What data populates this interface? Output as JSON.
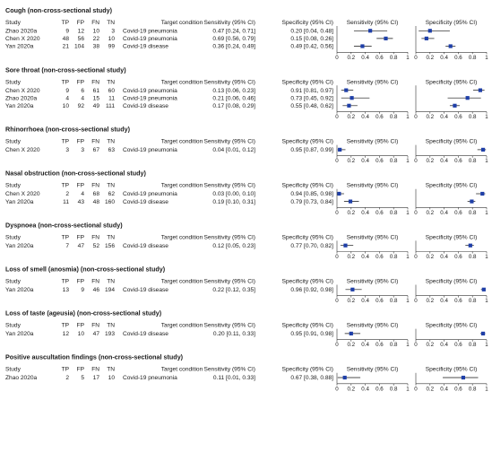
{
  "columns": {
    "study": "Study",
    "tp": "TP",
    "fp": "FP",
    "fn": "FN",
    "tn": "TN",
    "target": "Target condition",
    "sens": "Sensitivity (95% CI)",
    "spec": "Specificity (95% CI)"
  },
  "chart_data": {
    "type": "forest",
    "x_axis": {
      "xlim": [
        0,
        1
      ],
      "ticks": [
        "0",
        "0.2",
        "0.4",
        "0.6",
        "0.8",
        "1"
      ]
    },
    "marker_color": "#1f3fa8",
    "sections": [
      {
        "title": "Cough (non-cross-sectional study)",
        "rows": [
          {
            "study": "Zhao 2020a",
            "tp": 9,
            "fp": 12,
            "fn": 10,
            "tn": 3,
            "target": "Covid-19 pneumonia",
            "sens_text": "0.47 [0.24, 0.71]",
            "spec_text": "0.20 [0.04, 0.48]",
            "sens": 0.47,
            "sens_lo": 0.24,
            "sens_hi": 0.71,
            "spec": 0.2,
            "spec_lo": 0.04,
            "spec_hi": 0.48
          },
          {
            "study": "Chen X 2020",
            "tp": 48,
            "fp": 56,
            "fn": 22,
            "tn": 10,
            "target": "Covid-19 pneumonia",
            "sens_text": "0.69 [0.56, 0.79]",
            "spec_text": "0.15 [0.08, 0.26]",
            "sens": 0.69,
            "sens_lo": 0.56,
            "sens_hi": 0.79,
            "spec": 0.15,
            "spec_lo": 0.08,
            "spec_hi": 0.26
          },
          {
            "study": "Yan 2020a",
            "tp": 21,
            "fp": 104,
            "fn": 38,
            "tn": 99,
            "target": "Covid-19 disease",
            "sens_text": "0.36 [0.24, 0.49]",
            "spec_text": "0.49 [0.42, 0.56]",
            "sens": 0.36,
            "sens_lo": 0.24,
            "sens_hi": 0.49,
            "spec": 0.49,
            "spec_lo": 0.42,
            "spec_hi": 0.56
          }
        ]
      },
      {
        "title": "Sore throat (non-cross-sectional study)",
        "rows": [
          {
            "study": "Chen X 2020",
            "tp": 9,
            "fp": 6,
            "fn": 61,
            "tn": 60,
            "target": "Covid-19 pneumonia",
            "sens_text": "0.13 [0.06, 0.23]",
            "spec_text": "0.91 [0.81, 0.97]",
            "sens": 0.13,
            "sens_lo": 0.06,
            "sens_hi": 0.23,
            "spec": 0.91,
            "spec_lo": 0.81,
            "spec_hi": 0.97
          },
          {
            "study": "Zhao 2020a",
            "tp": 4,
            "fp": 4,
            "fn": 15,
            "tn": 11,
            "target": "Covid-19 pneumonia",
            "sens_text": "0.21 [0.06, 0.46]",
            "spec_text": "0.73 [0.45, 0.92]",
            "sens": 0.21,
            "sens_lo": 0.06,
            "sens_hi": 0.46,
            "spec": 0.73,
            "spec_lo": 0.45,
            "spec_hi": 0.92
          },
          {
            "study": "Yan 2020a",
            "tp": 10,
            "fp": 92,
            "fn": 49,
            "tn": 111,
            "target": "Covid-19 disease",
            "sens_text": "0.17 [0.08, 0.29]",
            "spec_text": "0.55 [0.48, 0.62]",
            "sens": 0.17,
            "sens_lo": 0.08,
            "sens_hi": 0.29,
            "spec": 0.55,
            "spec_lo": 0.48,
            "spec_hi": 0.62
          }
        ]
      },
      {
        "title": "Rhinorrhoea (non-cross-sectional study)",
        "rows": [
          {
            "study": "Chen X 2020",
            "tp": 3,
            "fp": 3,
            "fn": 67,
            "tn": 63,
            "target": "Covid-19 pneumonia",
            "sens_text": "0.04 [0.01, 0.12]",
            "spec_text": "0.95 [0.87, 0.99]",
            "sens": 0.04,
            "sens_lo": 0.01,
            "sens_hi": 0.12,
            "spec": 0.95,
            "spec_lo": 0.87,
            "spec_hi": 0.99
          }
        ]
      },
      {
        "title": "Nasal obstruction (non-cross-sectional study)",
        "rows": [
          {
            "study": "Chen X 2020",
            "tp": 2,
            "fp": 4,
            "fn": 68,
            "tn": 62,
            "target": "Covid-19 pneumonia",
            "sens_text": "0.03 [0.00, 0.10]",
            "spec_text": "0.94 [0.85, 0.98]",
            "sens": 0.03,
            "sens_lo": 0.0,
            "sens_hi": 0.1,
            "spec": 0.94,
            "spec_lo": 0.85,
            "spec_hi": 0.98
          },
          {
            "study": "Yan 2020a",
            "tp": 11,
            "fp": 43,
            "fn": 48,
            "tn": 160,
            "target": "Covid-19 disease",
            "sens_text": "0.19 [0.10, 0.31]",
            "spec_text": "0.79 [0.73, 0.84]",
            "sens": 0.19,
            "sens_lo": 0.1,
            "sens_hi": 0.31,
            "spec": 0.79,
            "spec_lo": 0.73,
            "spec_hi": 0.84
          }
        ]
      },
      {
        "title": "Dyspnoea (non-cross-sectional study)",
        "rows": [
          {
            "study": "Yan 2020a",
            "tp": 7,
            "fp": 47,
            "fn": 52,
            "tn": 156,
            "target": "Covid-19 disease",
            "sens_text": "0.12 [0.05, 0.23]",
            "spec_text": "0.77 [0.70, 0.82]",
            "sens": 0.12,
            "sens_lo": 0.05,
            "sens_hi": 0.23,
            "spec": 0.77,
            "spec_lo": 0.7,
            "spec_hi": 0.82
          }
        ]
      },
      {
        "title": "Loss of smell (anosmia) (non-cross-sectional study)",
        "rows": [
          {
            "study": "Yan 2020a",
            "tp": 13,
            "fp": 9,
            "fn": 46,
            "tn": 194,
            "target": "Covid-19 disease",
            "sens_text": "0.22 [0.12, 0.35]",
            "spec_text": "0.96 [0.92, 0.98]",
            "sens": 0.22,
            "sens_lo": 0.12,
            "sens_hi": 0.35,
            "spec": 0.96,
            "spec_lo": 0.92,
            "spec_hi": 0.98
          }
        ]
      },
      {
        "title": "Loss of taste (ageusia) (non-cross-sectional study)",
        "rows": [
          {
            "study": "Yan 2020a",
            "tp": 12,
            "fp": 10,
            "fn": 47,
            "tn": 193,
            "target": "Covid-19 disease",
            "sens_text": "0.20 [0.11, 0.33]",
            "spec_text": "0.95 [0.91, 0.98]",
            "sens": 0.2,
            "sens_lo": 0.11,
            "sens_hi": 0.33,
            "spec": 0.95,
            "spec_lo": 0.91,
            "spec_hi": 0.98
          }
        ]
      },
      {
        "title": "Positive auscultation findings (non-cross-sectional study)",
        "rows": [
          {
            "study": "Zhao 2020a",
            "tp": 2,
            "fp": 5,
            "fn": 17,
            "tn": 10,
            "target": "Covid-19 pneumonia",
            "sens_text": "0.11 [0.01, 0.33]",
            "spec_text": "0.67 [0.38, 0.88]",
            "sens": 0.11,
            "sens_lo": 0.01,
            "sens_hi": 0.33,
            "spec": 0.67,
            "spec_lo": 0.38,
            "spec_hi": 0.88
          }
        ]
      }
    ]
  }
}
